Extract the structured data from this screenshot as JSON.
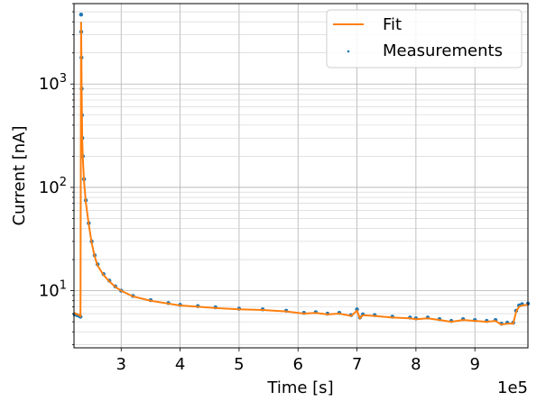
{
  "chart_data": {
    "type": "scatter",
    "xlabel": "Time [s]",
    "ylabel": "Current [nA]",
    "x_offset_label": "1e5",
    "xscale": "linear",
    "yscale": "log",
    "xlim": [
      2.2,
      9.9
    ],
    "ylim": [
      2.8,
      6000
    ],
    "xticks": [
      {
        "value": 3,
        "label": "3"
      },
      {
        "value": 4,
        "label": "4"
      },
      {
        "value": 5,
        "label": "5"
      },
      {
        "value": 6,
        "label": "6"
      },
      {
        "value": 7,
        "label": "7"
      },
      {
        "value": 8,
        "label": "8"
      },
      {
        "value": 9,
        "label": "9"
      }
    ],
    "yticks": [
      {
        "value": 10,
        "base": "10",
        "exp": "1"
      },
      {
        "value": 100,
        "base": "10",
        "exp": "2"
      },
      {
        "value": 1000,
        "base": "10",
        "exp": "3"
      }
    ],
    "grid": true,
    "minor_grid": true,
    "legend_position": "top-right",
    "legend": [
      {
        "label": "Fit",
        "marker": "line",
        "color": "#ff7f0e"
      },
      {
        "label": "Measurements",
        "marker": "dot",
        "color": "#1f77b4"
      }
    ],
    "series": [
      {
        "name": "Measurements",
        "kind": "scatter",
        "color": "#1f77b4",
        "points": [
          [
            2.21,
            5.9
          ],
          [
            2.25,
            5.8
          ],
          [
            2.29,
            5.7
          ],
          [
            2.31,
            5.6
          ],
          [
            2.32,
            4700
          ],
          [
            2.322,
            3200
          ],
          [
            2.326,
            1800
          ],
          [
            2.33,
            900
          ],
          [
            2.335,
            500
          ],
          [
            2.34,
            300
          ],
          [
            2.35,
            200
          ],
          [
            2.37,
            120
          ],
          [
            2.4,
            75
          ],
          [
            2.45,
            45
          ],
          [
            2.5,
            30
          ],
          [
            2.55,
            22
          ],
          [
            2.6,
            18
          ],
          [
            2.7,
            14.5
          ],
          [
            2.8,
            12.5
          ],
          [
            2.9,
            11
          ],
          [
            3.0,
            10
          ],
          [
            3.2,
            8.9
          ],
          [
            3.5,
            8.1
          ],
          [
            3.8,
            7.6
          ],
          [
            4.0,
            7.3
          ],
          [
            4.3,
            7.1
          ],
          [
            4.6,
            6.9
          ],
          [
            5.0,
            6.7
          ],
          [
            5.4,
            6.6
          ],
          [
            5.8,
            6.4
          ],
          [
            6.1,
            6.1
          ],
          [
            6.3,
            6.2
          ],
          [
            6.5,
            6.0
          ],
          [
            6.7,
            6.1
          ],
          [
            6.9,
            5.8
          ],
          [
            7.0,
            6.6
          ],
          [
            7.05,
            5.5
          ],
          [
            7.1,
            5.9
          ],
          [
            7.3,
            5.8
          ],
          [
            7.6,
            5.6
          ],
          [
            7.9,
            5.5
          ],
          [
            8.0,
            5.4
          ],
          [
            8.2,
            5.5
          ],
          [
            8.4,
            5.3
          ],
          [
            8.6,
            5.1
          ],
          [
            8.8,
            5.3
          ],
          [
            9.0,
            5.2
          ],
          [
            9.2,
            5.1
          ],
          [
            9.35,
            5.2
          ],
          [
            9.45,
            4.8
          ],
          [
            9.55,
            4.9
          ],
          [
            9.65,
            4.9
          ],
          [
            9.7,
            6.4
          ],
          [
            9.75,
            7.2
          ],
          [
            9.8,
            7.4
          ],
          [
            9.9,
            7.5
          ]
        ]
      },
      {
        "name": "Fit",
        "kind": "line",
        "color": "#ff7f0e",
        "points": [
          [
            2.21,
            6.1
          ],
          [
            2.25,
            5.9
          ],
          [
            2.29,
            5.8
          ],
          [
            2.31,
            5.7
          ],
          [
            2.32,
            4000
          ],
          [
            2.322,
            3000
          ],
          [
            2.326,
            1700
          ],
          [
            2.33,
            850
          ],
          [
            2.335,
            480
          ],
          [
            2.34,
            290
          ],
          [
            2.35,
            190
          ],
          [
            2.37,
            115
          ],
          [
            2.4,
            72
          ],
          [
            2.45,
            44
          ],
          [
            2.5,
            29
          ],
          [
            2.55,
            21.5
          ],
          [
            2.6,
            17.5
          ],
          [
            2.7,
            14.2
          ],
          [
            2.8,
            12.3
          ],
          [
            2.9,
            10.9
          ],
          [
            3.0,
            10
          ],
          [
            3.2,
            8.8
          ],
          [
            3.5,
            8.0
          ],
          [
            3.8,
            7.5
          ],
          [
            4.0,
            7.2
          ],
          [
            4.3,
            7.0
          ],
          [
            4.6,
            6.8
          ],
          [
            5.0,
            6.6
          ],
          [
            5.4,
            6.5
          ],
          [
            5.8,
            6.3
          ],
          [
            6.1,
            6.0
          ],
          [
            6.3,
            6.1
          ],
          [
            6.5,
            5.9
          ],
          [
            6.7,
            6.0
          ],
          [
            6.9,
            5.7
          ],
          [
            7.0,
            6.4
          ],
          [
            7.05,
            5.4
          ],
          [
            7.1,
            5.8
          ],
          [
            7.3,
            5.7
          ],
          [
            7.6,
            5.5
          ],
          [
            7.9,
            5.4
          ],
          [
            8.0,
            5.3
          ],
          [
            8.2,
            5.4
          ],
          [
            8.4,
            5.2
          ],
          [
            8.6,
            5.0
          ],
          [
            8.8,
            5.2
          ],
          [
            9.0,
            5.1
          ],
          [
            9.2,
            5.0
          ],
          [
            9.35,
            5.1
          ],
          [
            9.45,
            4.7
          ],
          [
            9.55,
            4.8
          ],
          [
            9.65,
            4.8
          ],
          [
            9.7,
            6.3
          ],
          [
            9.75,
            7.0
          ],
          [
            9.8,
            7.2
          ],
          [
            9.9,
            7.3
          ]
        ]
      }
    ]
  }
}
